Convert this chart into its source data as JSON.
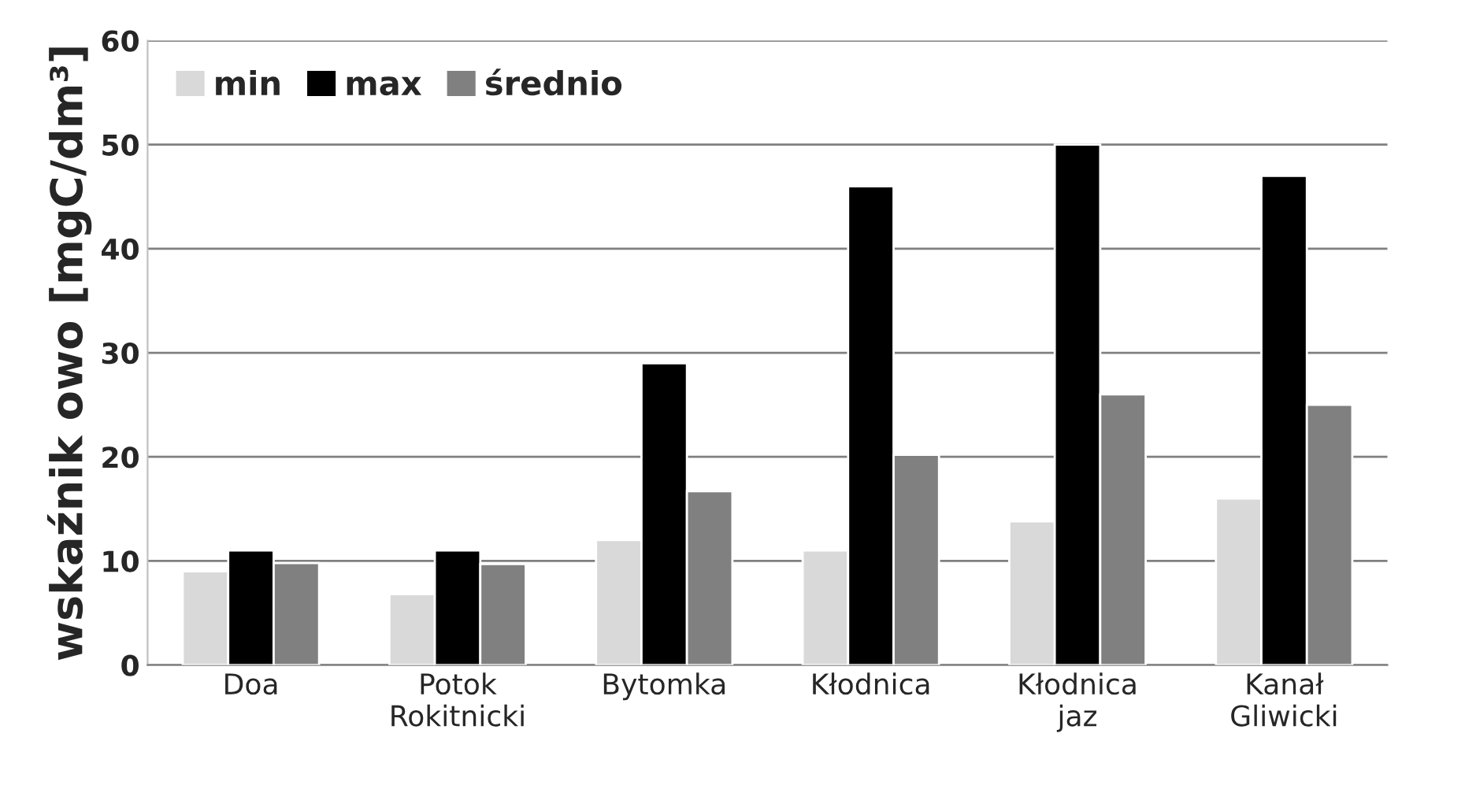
{
  "chart_data": {
    "type": "bar",
    "ylabel": "wskaźnik owo [mgC/dm³]",
    "categories": [
      "Doa",
      "Potok\nRokitnicki",
      "Bytomka",
      "Kłodnica",
      "Kłodnica\njaz",
      "Kanał\nGliwicki"
    ],
    "series": [
      {
        "name": "min",
        "color": "#d9d9d9",
        "values": [
          9,
          6.8,
          12,
          11,
          13.8,
          16
        ]
      },
      {
        "name": "max",
        "color": "#000000",
        "values": [
          11,
          11,
          29,
          46,
          50,
          47
        ]
      },
      {
        "name": "średnio",
        "color": "#808080",
        "values": [
          9.8,
          9.7,
          16.7,
          20.2,
          26,
          25
        ]
      }
    ],
    "ylim": [
      0,
      60
    ],
    "yticks": [
      0,
      10,
      20,
      30,
      40,
      50,
      60
    ],
    "grid": "y",
    "legend": "top left"
  }
}
